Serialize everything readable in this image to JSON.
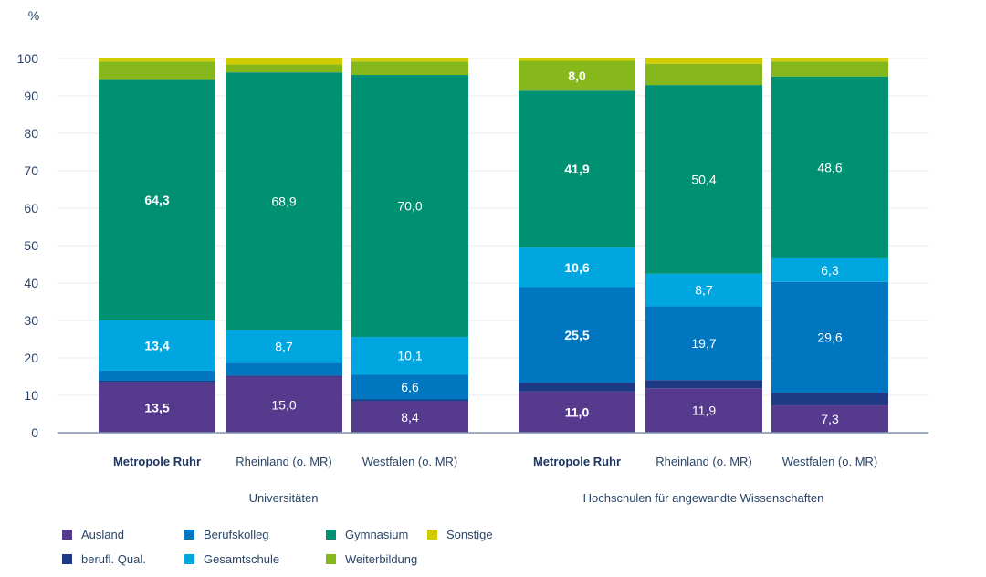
{
  "chart_data": {
    "type": "bar",
    "stacked": true,
    "ylabel": "%",
    "ylim": [
      0,
      100
    ],
    "yticks": [
      0,
      10,
      20,
      30,
      40,
      50,
      60,
      70,
      80,
      90,
      100
    ],
    "grid": true,
    "groups": [
      {
        "label": "Universitäten",
        "categories": [
          "Metropole Ruhr",
          "Rheinland (o. MR)",
          "Westfalen (o. MR)"
        ]
      },
      {
        "label": "Hochschulen für angewandte Wissenschaften",
        "categories": [
          "Metropole Ruhr",
          "Rheinland (o. MR)",
          "Westfalen (o. MR)"
        ]
      }
    ],
    "bold_categories": [
      "Metropole Ruhr"
    ],
    "series": [
      {
        "name": "Ausland",
        "color": "#553a8e",
        "values": [
          13.5,
          15.0,
          8.4,
          11.0,
          11.9,
          7.3
        ],
        "labeled": true
      },
      {
        "name": "berufl. Qual.",
        "color": "#1f3a85",
        "values": [
          0.4,
          0.3,
          0.5,
          2.4,
          2.2,
          3.4
        ],
        "labeled": false
      },
      {
        "name": "Berufskolleg",
        "color": "#0077c0",
        "values": [
          2.7,
          3.4,
          6.6,
          25.5,
          19.7,
          29.6
        ],
        "labeled": [
          false,
          false,
          true,
          true,
          true,
          true
        ]
      },
      {
        "name": "Gesamtschule",
        "color": "#00a6e0",
        "values": [
          13.4,
          8.7,
          10.1,
          10.6,
          8.7,
          6.3
        ],
        "labeled": true
      },
      {
        "name": "Gymnasium",
        "color": "#009172",
        "values": [
          64.3,
          68.9,
          70.0,
          41.9,
          50.4,
          48.6
        ],
        "labeled": true
      },
      {
        "name": "Weiterbildung",
        "color": "#86b81c",
        "values": [
          4.9,
          2.1,
          3.6,
          8.0,
          5.7,
          4.0
        ],
        "labeled": [
          false,
          false,
          false,
          true,
          false,
          false
        ]
      },
      {
        "name": "Sonstige",
        "color": "#d0cc00",
        "values": [
          0.8,
          1.6,
          0.8,
          0.6,
          1.4,
          0.8
        ],
        "labeled": false
      }
    ],
    "legend": {
      "placement": "bottom-left",
      "order": [
        "Ausland",
        "Berufskolleg",
        "Gymnasium",
        "Sonstige",
        "berufl. Qual.",
        "Gesamtschule",
        "Weiterbildung"
      ]
    }
  }
}
